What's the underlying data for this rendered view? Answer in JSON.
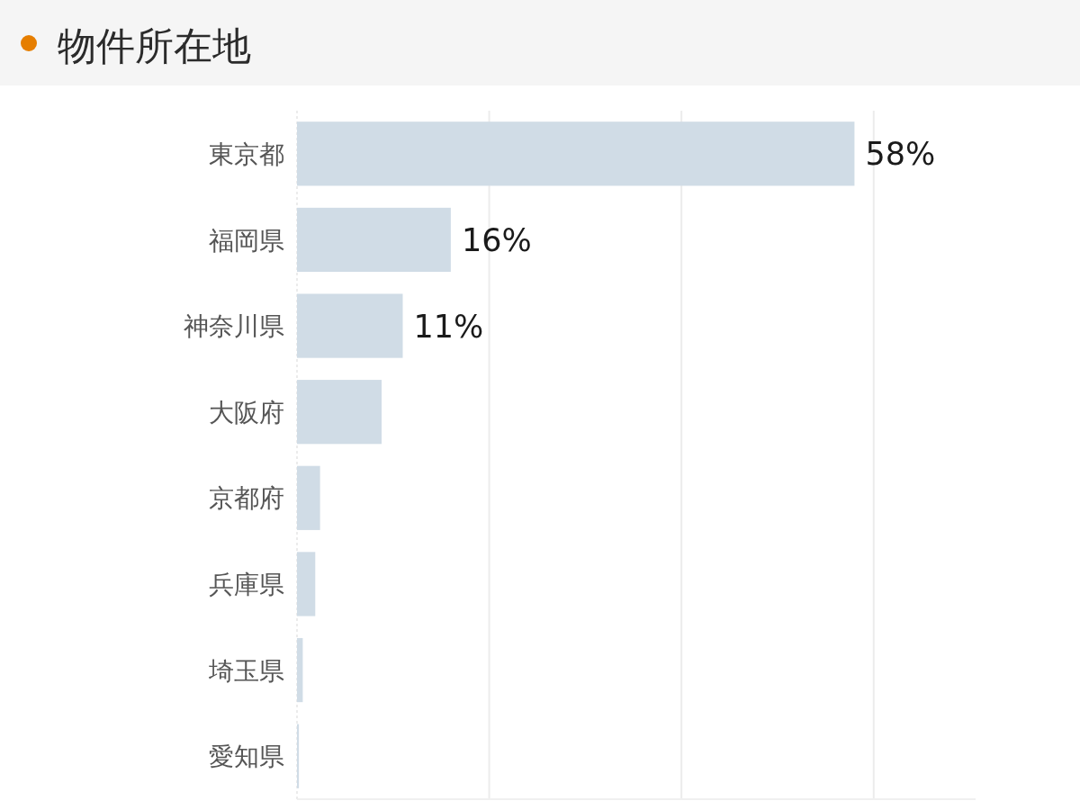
{
  "chart_data": {
    "type": "bar",
    "title": "物件所在地",
    "orientation": "horizontal",
    "categories": [
      "東京都",
      "福岡県",
      "神奈川県",
      "大阪府",
      "京都府",
      "兵庫県",
      "埼玉県",
      "愛知県"
    ],
    "values": [
      58,
      16,
      11,
      8.8,
      2.4,
      1.9,
      0.6,
      0.2
    ],
    "value_labels": [
      "58%",
      "16%",
      "11%",
      null,
      null,
      null,
      null,
      null
    ],
    "color": "#d0dce6",
    "xlim": [
      0,
      70.6
    ],
    "xticks": [
      {
        "value": 20,
        "label": null
      },
      {
        "value": 40,
        "label": null
      },
      {
        "value": 60,
        "label": null
      }
    ],
    "grid": "x",
    "tick_labels": "y"
  }
}
